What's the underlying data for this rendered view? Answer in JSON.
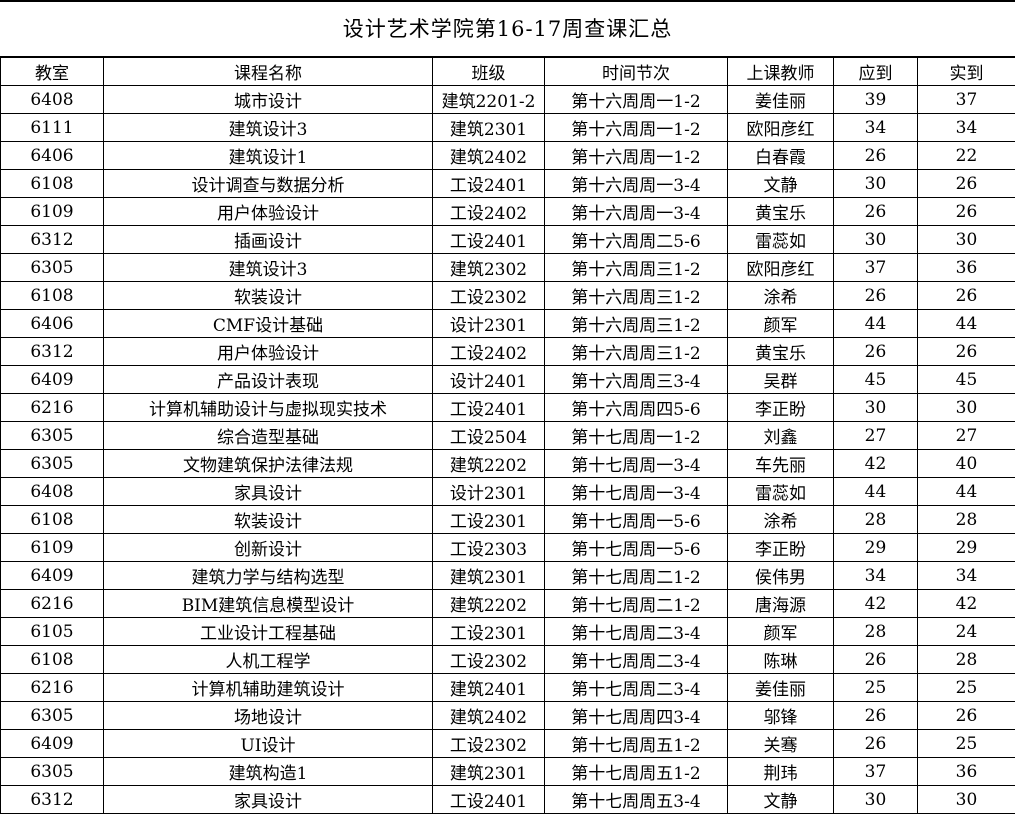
{
  "title": "设计艺术学院第16-17周查课汇总",
  "table": {
    "headers": [
      "教室",
      "课程名称",
      "班级",
      "时间节次",
      "上课教师",
      "应到",
      "实到"
    ],
    "rows": [
      [
        "6408",
        "城市设计",
        "建筑2201-2",
        "第十六周周一1-2",
        "姜佳丽",
        "39",
        "37"
      ],
      [
        "6111",
        "建筑设计3",
        "建筑2301",
        "第十六周周一1-2",
        "欧阳彦红",
        "34",
        "34"
      ],
      [
        "6406",
        "建筑设计1",
        "建筑2402",
        "第十六周周一1-2",
        "白春霞",
        "26",
        "22"
      ],
      [
        "6108",
        "设计调查与数据分析",
        "工设2401",
        "第十六周周一3-4",
        "文静",
        "30",
        "26"
      ],
      [
        "6109",
        "用户体验设计",
        "工设2402",
        "第十六周周一3-4",
        "黄宝乐",
        "26",
        "26"
      ],
      [
        "6312",
        "插画设计",
        "工设2401",
        "第十六周周二5-6",
        "雷蕊如",
        "30",
        "30"
      ],
      [
        "6305",
        "建筑设计3",
        "建筑2302",
        "第十六周周三1-2",
        "欧阳彦红",
        "37",
        "36"
      ],
      [
        "6108",
        "软装设计",
        "工设2302",
        "第十六周周三1-2",
        "涂希",
        "26",
        "26"
      ],
      [
        "6406",
        "CMF设计基础",
        "设计2301",
        "第十六周周三1-2",
        "颜军",
        "44",
        "44"
      ],
      [
        "6312",
        "用户体验设计",
        "工设2402",
        "第十六周周三1-2",
        "黄宝乐",
        "26",
        "26"
      ],
      [
        "6409",
        "产品设计表现",
        "设计2401",
        "第十六周周三3-4",
        "吴群",
        "45",
        "45"
      ],
      [
        "6216",
        "计算机辅助设计与虚拟现实技术",
        "工设2401",
        "第十六周周四5-6",
        "李正盼",
        "30",
        "30"
      ],
      [
        "6305",
        "综合造型基础",
        "工设2504",
        "第十七周周一1-2",
        "刘鑫",
        "27",
        "27"
      ],
      [
        "6305",
        "文物建筑保护法律法规",
        "建筑2202",
        "第十七周周一3-4",
        "车先丽",
        "42",
        "40"
      ],
      [
        "6408",
        "家具设计",
        "设计2301",
        "第十七周周一3-4",
        "雷蕊如",
        "44",
        "44"
      ],
      [
        "6108",
        "软装设计",
        "工设2301",
        "第十七周周一5-6",
        "涂希",
        "28",
        "28"
      ],
      [
        "6109",
        "创新设计",
        "工设2303",
        "第十七周周一5-6",
        "李正盼",
        "29",
        "29"
      ],
      [
        "6409",
        "建筑力学与结构选型",
        "建筑2301",
        "第十七周周二1-2",
        "侯伟男",
        "34",
        "34"
      ],
      [
        "6216",
        "BIM建筑信息模型设计",
        "建筑2202",
        "第十七周周二1-2",
        "唐海源",
        "42",
        "42"
      ],
      [
        "6105",
        "工业设计工程基础",
        "工设2301",
        "第十七周周二3-4",
        "颜军",
        "28",
        "24"
      ],
      [
        "6108",
        "人机工程学",
        "工设2302",
        "第十七周周二3-4",
        "陈琳",
        "26",
        "28"
      ],
      [
        "6216",
        "计算机辅助建筑设计",
        "建筑2401",
        "第十七周周二3-4",
        "姜佳丽",
        "25",
        "25"
      ],
      [
        "6305",
        "场地设计",
        "建筑2402",
        "第十七周周四3-4",
        "邬锋",
        "26",
        "26"
      ],
      [
        "6409",
        "UI设计",
        "工设2302",
        "第十七周周五1-2",
        "关骞",
        "26",
        "25"
      ],
      [
        "6305",
        "建筑构造1",
        "建筑2301",
        "第十七周周五1-2",
        "荆玮",
        "37",
        "36"
      ],
      [
        "6312",
        "家具设计",
        "工设2401",
        "第十七周周五3-4",
        "文静",
        "30",
        "30"
      ]
    ]
  }
}
